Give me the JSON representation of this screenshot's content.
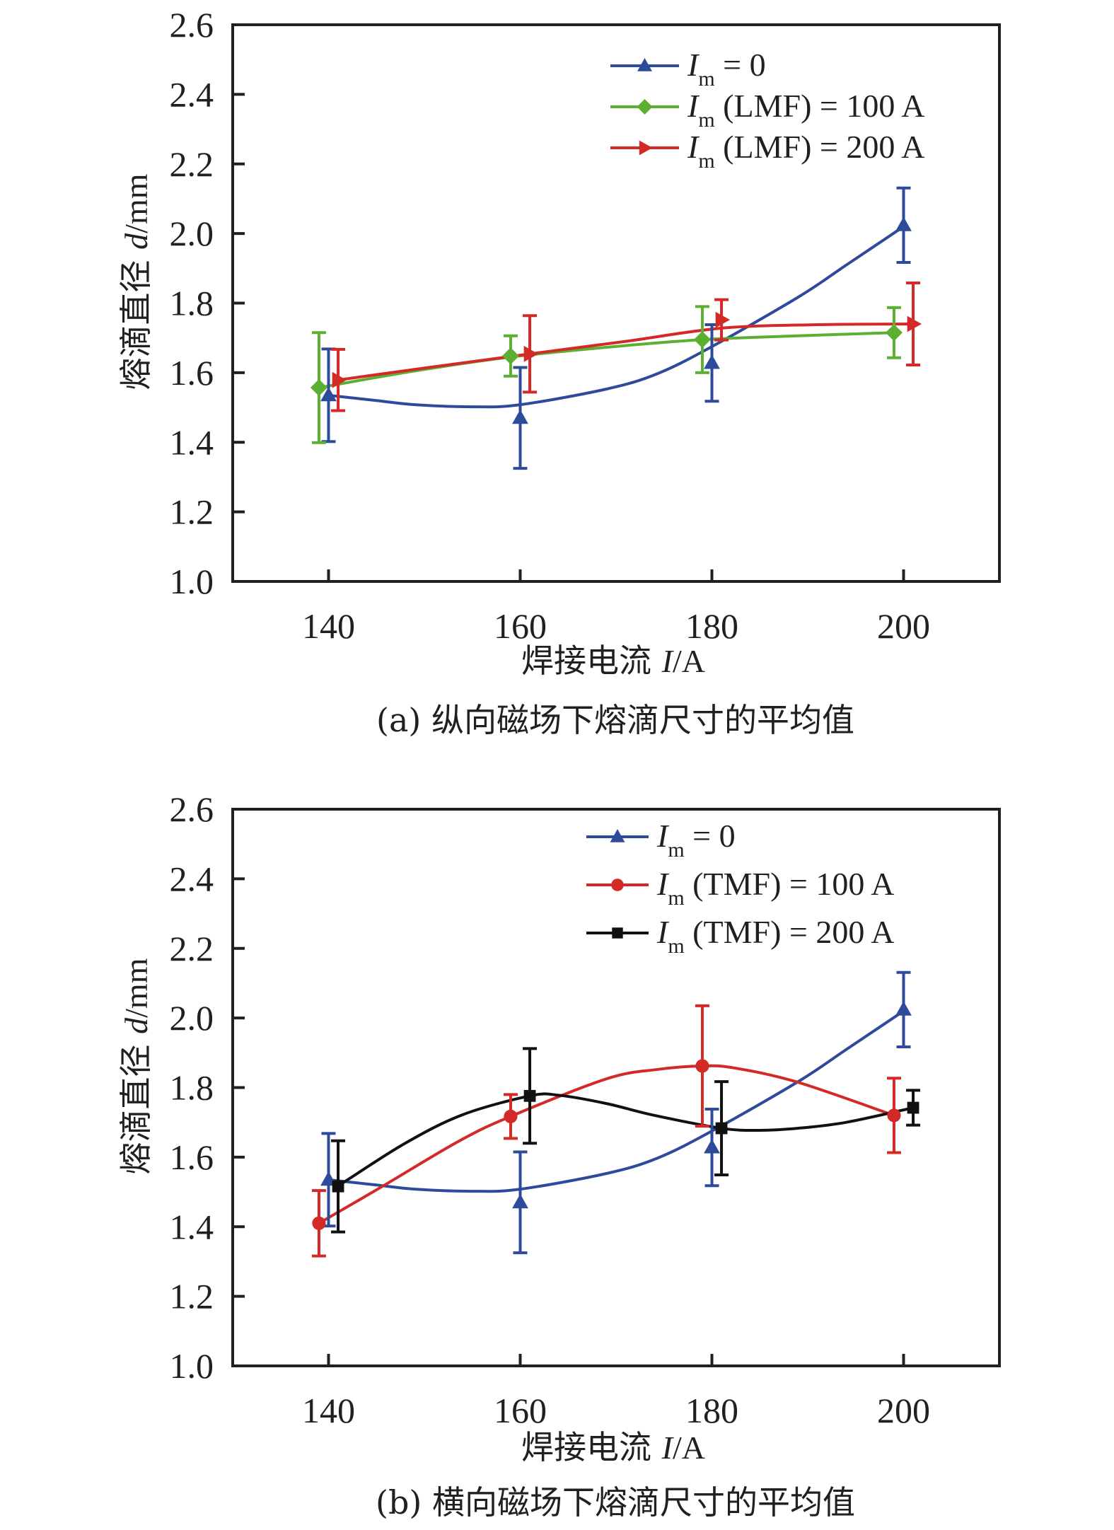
{
  "chart_data": [
    {
      "type": "line",
      "panel": "a",
      "caption": "(a) 纵向磁场下熔滴尺寸的平均值",
      "xlabel_text": "焊接电流 ",
      "xlabel_var": "I",
      "xlabel_unit": "/A",
      "ylabel_text": "熔滴直径 ",
      "ylabel_var": "d",
      "ylabel_unit": "/mm",
      "xlim": [
        130,
        210
      ],
      "ylim": [
        1.0,
        2.6
      ],
      "xticks": [
        "140",
        "160",
        "180",
        "200"
      ],
      "xtick_values": [
        140,
        160,
        180,
        200
      ],
      "yticks": [
        "1.0",
        "1.2",
        "1.4",
        "1.6",
        "1.8",
        "2.0",
        "2.2",
        "2.4",
        "2.6"
      ],
      "ytick_values": [
        1.0,
        1.2,
        1.4,
        1.6,
        1.8,
        2.0,
        2.2,
        2.4,
        2.6
      ],
      "grid": false,
      "legend_position": "top-right",
      "series": [
        {
          "name": "I_m = 0",
          "legend_main": "I",
          "legend_sub": "m",
          "legend_rest": " = 0",
          "color": "#2e4b9b",
          "marker": "triangle-up",
          "x": [
            140,
            160,
            180,
            200
          ],
          "y": [
            1.535,
            1.47,
            1.628,
            2.024
          ],
          "yerr": [
            0.133,
            0.145,
            0.11,
            0.107
          ],
          "curve": [
            [
              140,
              1.535
            ],
            [
              145,
              1.52
            ],
            [
              149,
              1.508
            ],
            [
              155,
              1.502
            ],
            [
              160,
              1.508
            ],
            [
              169,
              1.553
            ],
            [
              174.3,
              1.597
            ],
            [
              180,
              1.675
            ],
            [
              189,
              1.817
            ],
            [
              194,
              1.909
            ],
            [
              200,
              2.02
            ]
          ]
        },
        {
          "name": "I_m (LMF) = 100 A",
          "legend_main": "I",
          "legend_sub": "m",
          "legend_rest": " (LMF) = 100 A",
          "color": "#5cb031",
          "marker": "diamond",
          "x": [
            139,
            159,
            179,
            199
          ],
          "y": [
            1.557,
            1.648,
            1.695,
            1.715
          ],
          "yerr": [
            0.158,
            0.058,
            0.095,
            0.072
          ],
          "curve": [
            [
              139,
              1.557
            ],
            [
              149,
              1.605
            ],
            [
              159,
              1.645
            ],
            [
              169,
              1.673
            ],
            [
              179,
              1.695
            ],
            [
              189,
              1.706
            ],
            [
              199,
              1.715
            ]
          ]
        },
        {
          "name": "I_m (LMF) = 200 A",
          "legend_main": "I",
          "legend_sub": "m",
          "legend_rest": " (LMF) = 200 A",
          "color": "#d42a27",
          "marker": "triangle-right",
          "x": [
            141,
            161,
            181,
            201
          ],
          "y": [
            1.579,
            1.654,
            1.752,
            1.74
          ],
          "yerr": [
            0.088,
            0.11,
            0.058,
            0.118
          ],
          "curve": [
            [
              141,
              1.579
            ],
            [
              151,
              1.617
            ],
            [
              161,
              1.654
            ],
            [
              171,
              1.69
            ],
            [
              181,
              1.728
            ],
            [
              191,
              1.738
            ],
            [
              201,
              1.74
            ]
          ]
        }
      ]
    },
    {
      "type": "line",
      "panel": "b",
      "caption": "(b) 横向磁场下熔滴尺寸的平均值",
      "xlabel_text": "焊接电流 ",
      "xlabel_var": "I",
      "xlabel_unit": "/A",
      "ylabel_text": "熔滴直径 ",
      "ylabel_var": "d",
      "ylabel_unit": "/mm",
      "xlim": [
        130,
        210
      ],
      "ylim": [
        1.0,
        2.6
      ],
      "xticks": [
        "140",
        "160",
        "180",
        "200"
      ],
      "xtick_values": [
        140,
        160,
        180,
        200
      ],
      "yticks": [
        "1.0",
        "1.2",
        "1.4",
        "1.6",
        "1.8",
        "2.0",
        "2.2",
        "2.4",
        "2.6"
      ],
      "ytick_values": [
        1.0,
        1.2,
        1.4,
        1.6,
        1.8,
        2.0,
        2.2,
        2.4,
        2.6
      ],
      "grid": false,
      "legend_position": "top-right",
      "series": [
        {
          "name": "I_m = 0",
          "legend_main": "I",
          "legend_sub": "m",
          "legend_rest": " = 0",
          "color": "#2e4b9b",
          "marker": "triangle-up",
          "x": [
            140,
            160,
            180,
            200
          ],
          "y": [
            1.535,
            1.47,
            1.628,
            2.024
          ],
          "yerr": [
            0.133,
            0.145,
            0.11,
            0.107
          ],
          "curve": [
            [
              140,
              1.535
            ],
            [
              145,
              1.52
            ],
            [
              149,
              1.508
            ],
            [
              155,
              1.502
            ],
            [
              160,
              1.508
            ],
            [
              169,
              1.553
            ],
            [
              174.3,
              1.597
            ],
            [
              180,
              1.675
            ],
            [
              189,
              1.817
            ],
            [
              194,
              1.909
            ],
            [
              200,
              2.02
            ]
          ]
        },
        {
          "name": "I_m (TMF) = 100 A",
          "legend_main": "I",
          "legend_sub": "m",
          "legend_rest": " (TMF) = 100 A",
          "color": "#d42a27",
          "marker": "circle",
          "x": [
            139,
            159,
            179,
            199
          ],
          "y": [
            1.41,
            1.717,
            1.862,
            1.72
          ],
          "yerr": [
            0.094,
            0.063,
            0.173,
            0.107
          ],
          "curve": [
            [
              139,
              1.41
            ],
            [
              145.5,
              1.514
            ],
            [
              153.6,
              1.646
            ],
            [
              159,
              1.717
            ],
            [
              169,
              1.825
            ],
            [
              174.3,
              1.852
            ],
            [
              179,
              1.862
            ],
            [
              182.4,
              1.856
            ],
            [
              189,
              1.815
            ],
            [
              199,
              1.72
            ]
          ]
        },
        {
          "name": "I_m (TMF) = 200 A",
          "legend_main": "I",
          "legend_sub": "m",
          "legend_rest": " (TMF) = 200 A",
          "color": "#111111",
          "marker": "square",
          "x": [
            141,
            161,
            181,
            201
          ],
          "y": [
            1.516,
            1.776,
            1.683,
            1.742
          ],
          "yerr": [
            0.131,
            0.136,
            0.134,
            0.05
          ],
          "curve": [
            [
              141,
              1.516
            ],
            [
              142,
              1.535
            ],
            [
              148,
              1.64
            ],
            [
              154,
              1.722
            ],
            [
              161,
              1.776
            ],
            [
              164,
              1.778
            ],
            [
              169,
              1.754
            ],
            [
              174,
              1.72
            ],
            [
              181,
              1.683
            ],
            [
              185,
              1.677
            ],
            [
              189,
              1.683
            ],
            [
              194,
              1.7
            ],
            [
              201,
              1.742
            ]
          ]
        }
      ]
    }
  ]
}
